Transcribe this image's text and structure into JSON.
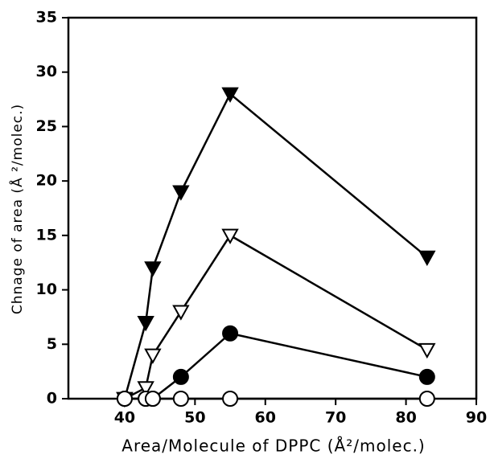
{
  "chart_data": {
    "type": "line",
    "x_label": "Area/Molecule of DPPC (Å²/molec.)",
    "y_label": "Chnage of area (Å ²/molec.)",
    "xlim": [
      32,
      90
    ],
    "xticks": [
      40,
      50,
      60,
      70,
      80,
      90
    ],
    "ylim": [
      0,
      35
    ],
    "yticks": [
      0,
      5,
      10,
      15,
      20,
      25,
      30,
      35
    ],
    "grid": false,
    "series": [
      {
        "color": "#000000",
        "marker": "triangle-down",
        "marker_fill": "#000000",
        "x": [
          40,
          43,
          44,
          48,
          55,
          83
        ],
        "values": [
          0,
          7,
          12,
          19,
          28,
          13
        ]
      },
      {
        "color": "#000000",
        "marker": "triangle-down",
        "marker_fill": "#ffffff",
        "x": [
          40,
          43,
          44,
          48,
          55,
          83
        ],
        "values": [
          0,
          1,
          4,
          8,
          15,
          4.5
        ]
      },
      {
        "color": "#000000",
        "marker": "circle",
        "marker_fill": "#000000",
        "x": [
          40,
          43,
          44,
          48,
          55,
          83
        ],
        "values": [
          0,
          0,
          0,
          2,
          6,
          2
        ]
      },
      {
        "color": "#000000",
        "marker": "circle",
        "marker_fill": "#ffffff",
        "x": [
          40,
          43,
          44,
          48,
          55,
          83
        ],
        "values": [
          0,
          0,
          0,
          0,
          0,
          0
        ]
      }
    ]
  }
}
